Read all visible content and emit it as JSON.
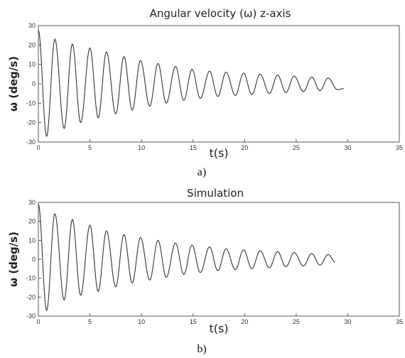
{
  "chart_data": [
    {
      "type": "line",
      "title": "Angular velocity (ω) z-axis",
      "xlabel": "t(s)",
      "ylabel": "ω (deg/s)",
      "xlim": [
        0,
        35
      ],
      "ylim": [
        -30,
        30
      ],
      "xticks": [
        "0",
        "5",
        "10",
        "15",
        "20",
        "25",
        "30",
        "35"
      ],
      "yticks": [
        "30",
        "20",
        "10",
        "0",
        "-10",
        "-20",
        "-30"
      ],
      "caption": "a)",
      "grid": false,
      "legend": "none",
      "series": [
        {
          "peaks": [
            {
              "x": 0.0,
              "y": 27.5
            },
            {
              "x": 0.8,
              "y": -27
            },
            {
              "x": 1.6,
              "y": 23
            },
            {
              "x": 2.5,
              "y": -23
            },
            {
              "x": 3.3,
              "y": 20.5
            },
            {
              "x": 4.1,
              "y": -20
            },
            {
              "x": 5.0,
              "y": 18.5
            },
            {
              "x": 5.8,
              "y": -17.5
            },
            {
              "x": 6.6,
              "y": 16.5
            },
            {
              "x": 7.5,
              "y": -15.5
            },
            {
              "x": 8.3,
              "y": 14
            },
            {
              "x": 9.1,
              "y": -13.5
            },
            {
              "x": 9.9,
              "y": 12
            },
            {
              "x": 10.8,
              "y": -11.5
            },
            {
              "x": 11.6,
              "y": 10.5
            },
            {
              "x": 12.4,
              "y": -10
            },
            {
              "x": 13.3,
              "y": 9
            },
            {
              "x": 14.1,
              "y": -8.5
            },
            {
              "x": 14.9,
              "y": 7.5
            },
            {
              "x": 15.7,
              "y": -7.5
            },
            {
              "x": 16.6,
              "y": 6.5
            },
            {
              "x": 17.4,
              "y": -6.5
            },
            {
              "x": 18.2,
              "y": 6
            },
            {
              "x": 19.1,
              "y": -6
            },
            {
              "x": 19.9,
              "y": 5.5
            },
            {
              "x": 20.7,
              "y": -5.5
            },
            {
              "x": 21.5,
              "y": 5
            },
            {
              "x": 22.4,
              "y": -5
            },
            {
              "x": 23.2,
              "y": 4.5
            },
            {
              "x": 24.0,
              "y": -4.5
            },
            {
              "x": 24.8,
              "y": 4
            },
            {
              "x": 25.7,
              "y": -4
            },
            {
              "x": 26.5,
              "y": 3.5
            },
            {
              "x": 27.3,
              "y": -3.5
            },
            {
              "x": 28.1,
              "y": 3
            },
            {
              "x": 29.0,
              "y": -3
            },
            {
              "x": 29.6,
              "y": -2.5
            }
          ]
        }
      ]
    },
    {
      "type": "line",
      "title": "Simulation",
      "xlabel": "t(s)",
      "ylabel": "ω (deg/s)",
      "xlim": [
        0,
        35
      ],
      "ylim": [
        -30,
        30
      ],
      "xticks": [
        "0",
        "5",
        "10",
        "15",
        "20",
        "25",
        "30",
        "35"
      ],
      "yticks": [
        "30",
        "20",
        "10",
        "0",
        "-10",
        "-20",
        "-30"
      ],
      "caption": "b)",
      "grid": false,
      "legend": "none",
      "series": [
        {
          "peaks": [
            {
              "x": 0.0,
              "y": 29
            },
            {
              "x": 0.8,
              "y": -27
            },
            {
              "x": 1.6,
              "y": 24
            },
            {
              "x": 2.5,
              "y": -21.5
            },
            {
              "x": 3.3,
              "y": 21
            },
            {
              "x": 4.1,
              "y": -19
            },
            {
              "x": 5.0,
              "y": 18
            },
            {
              "x": 5.8,
              "y": -17
            },
            {
              "x": 6.6,
              "y": 15
            },
            {
              "x": 7.5,
              "y": -14.5
            },
            {
              "x": 8.3,
              "y": 13
            },
            {
              "x": 9.1,
              "y": -12.5
            },
            {
              "x": 9.9,
              "y": 11.5
            },
            {
              "x": 10.8,
              "y": -11
            },
            {
              "x": 11.6,
              "y": 10
            },
            {
              "x": 12.4,
              "y": -9.5
            },
            {
              "x": 13.3,
              "y": 8.5
            },
            {
              "x": 14.1,
              "y": -8
            },
            {
              "x": 14.9,
              "y": 7.5
            },
            {
              "x": 15.7,
              "y": -7
            },
            {
              "x": 16.6,
              "y": 6.5
            },
            {
              "x": 17.4,
              "y": -6
            },
            {
              "x": 18.2,
              "y": 5.5
            },
            {
              "x": 19.1,
              "y": -5.5
            },
            {
              "x": 19.9,
              "y": 5
            },
            {
              "x": 20.7,
              "y": -5
            },
            {
              "x": 21.5,
              "y": 4.5
            },
            {
              "x": 22.4,
              "y": -4.5
            },
            {
              "x": 23.2,
              "y": 4
            },
            {
              "x": 24.0,
              "y": -4
            },
            {
              "x": 24.8,
              "y": 3.5
            },
            {
              "x": 25.7,
              "y": -3.5
            },
            {
              "x": 26.5,
              "y": 3
            },
            {
              "x": 27.3,
              "y": -3
            },
            {
              "x": 28.1,
              "y": 2.5
            },
            {
              "x": 28.8,
              "y": -1.5
            }
          ]
        }
      ]
    }
  ]
}
